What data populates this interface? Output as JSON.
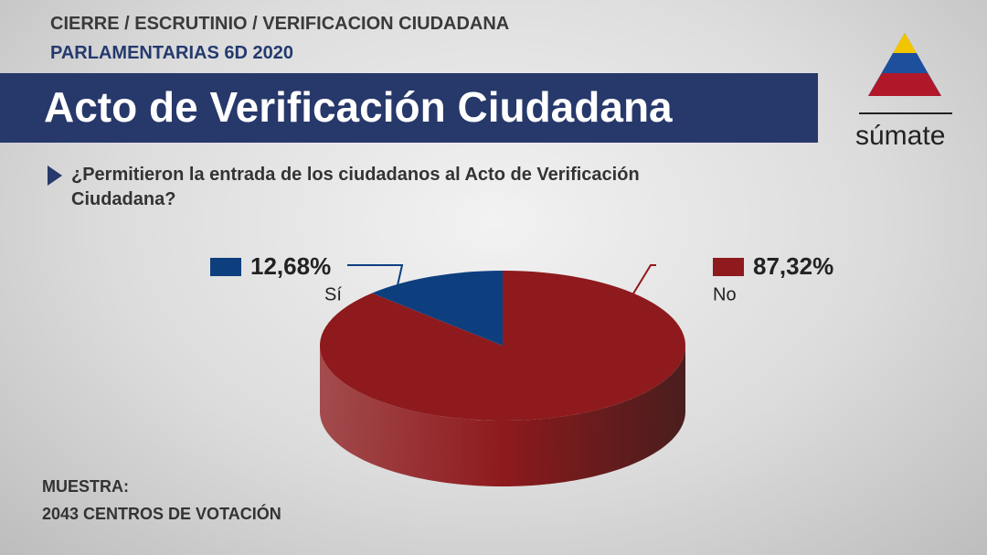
{
  "header": {
    "line1": "CIERRE / ESCRUTINIO / VERIFICACION CIUDADANA",
    "line2": "PARLAMENTARIAS 6D 2020"
  },
  "logo": "súmate",
  "footer": {
    "line1": "MUESTRA:",
    "line2": "2043 CENTROS DE VOTACIÓN"
  },
  "chart_data": {
    "type": "pie",
    "title": "Acto de Verificación Ciudadana",
    "subtitle": "¿Permitieron la entrada de los ciudadanos al Acto de Verificación Ciudadana?",
    "categories": [
      "Sí",
      "No"
    ],
    "values": [
      12.68,
      87.32
    ],
    "value_labels": [
      "12,68%",
      "87,32%"
    ],
    "colors": [
      "#0d3f7f",
      "#8e1a1d"
    ]
  }
}
